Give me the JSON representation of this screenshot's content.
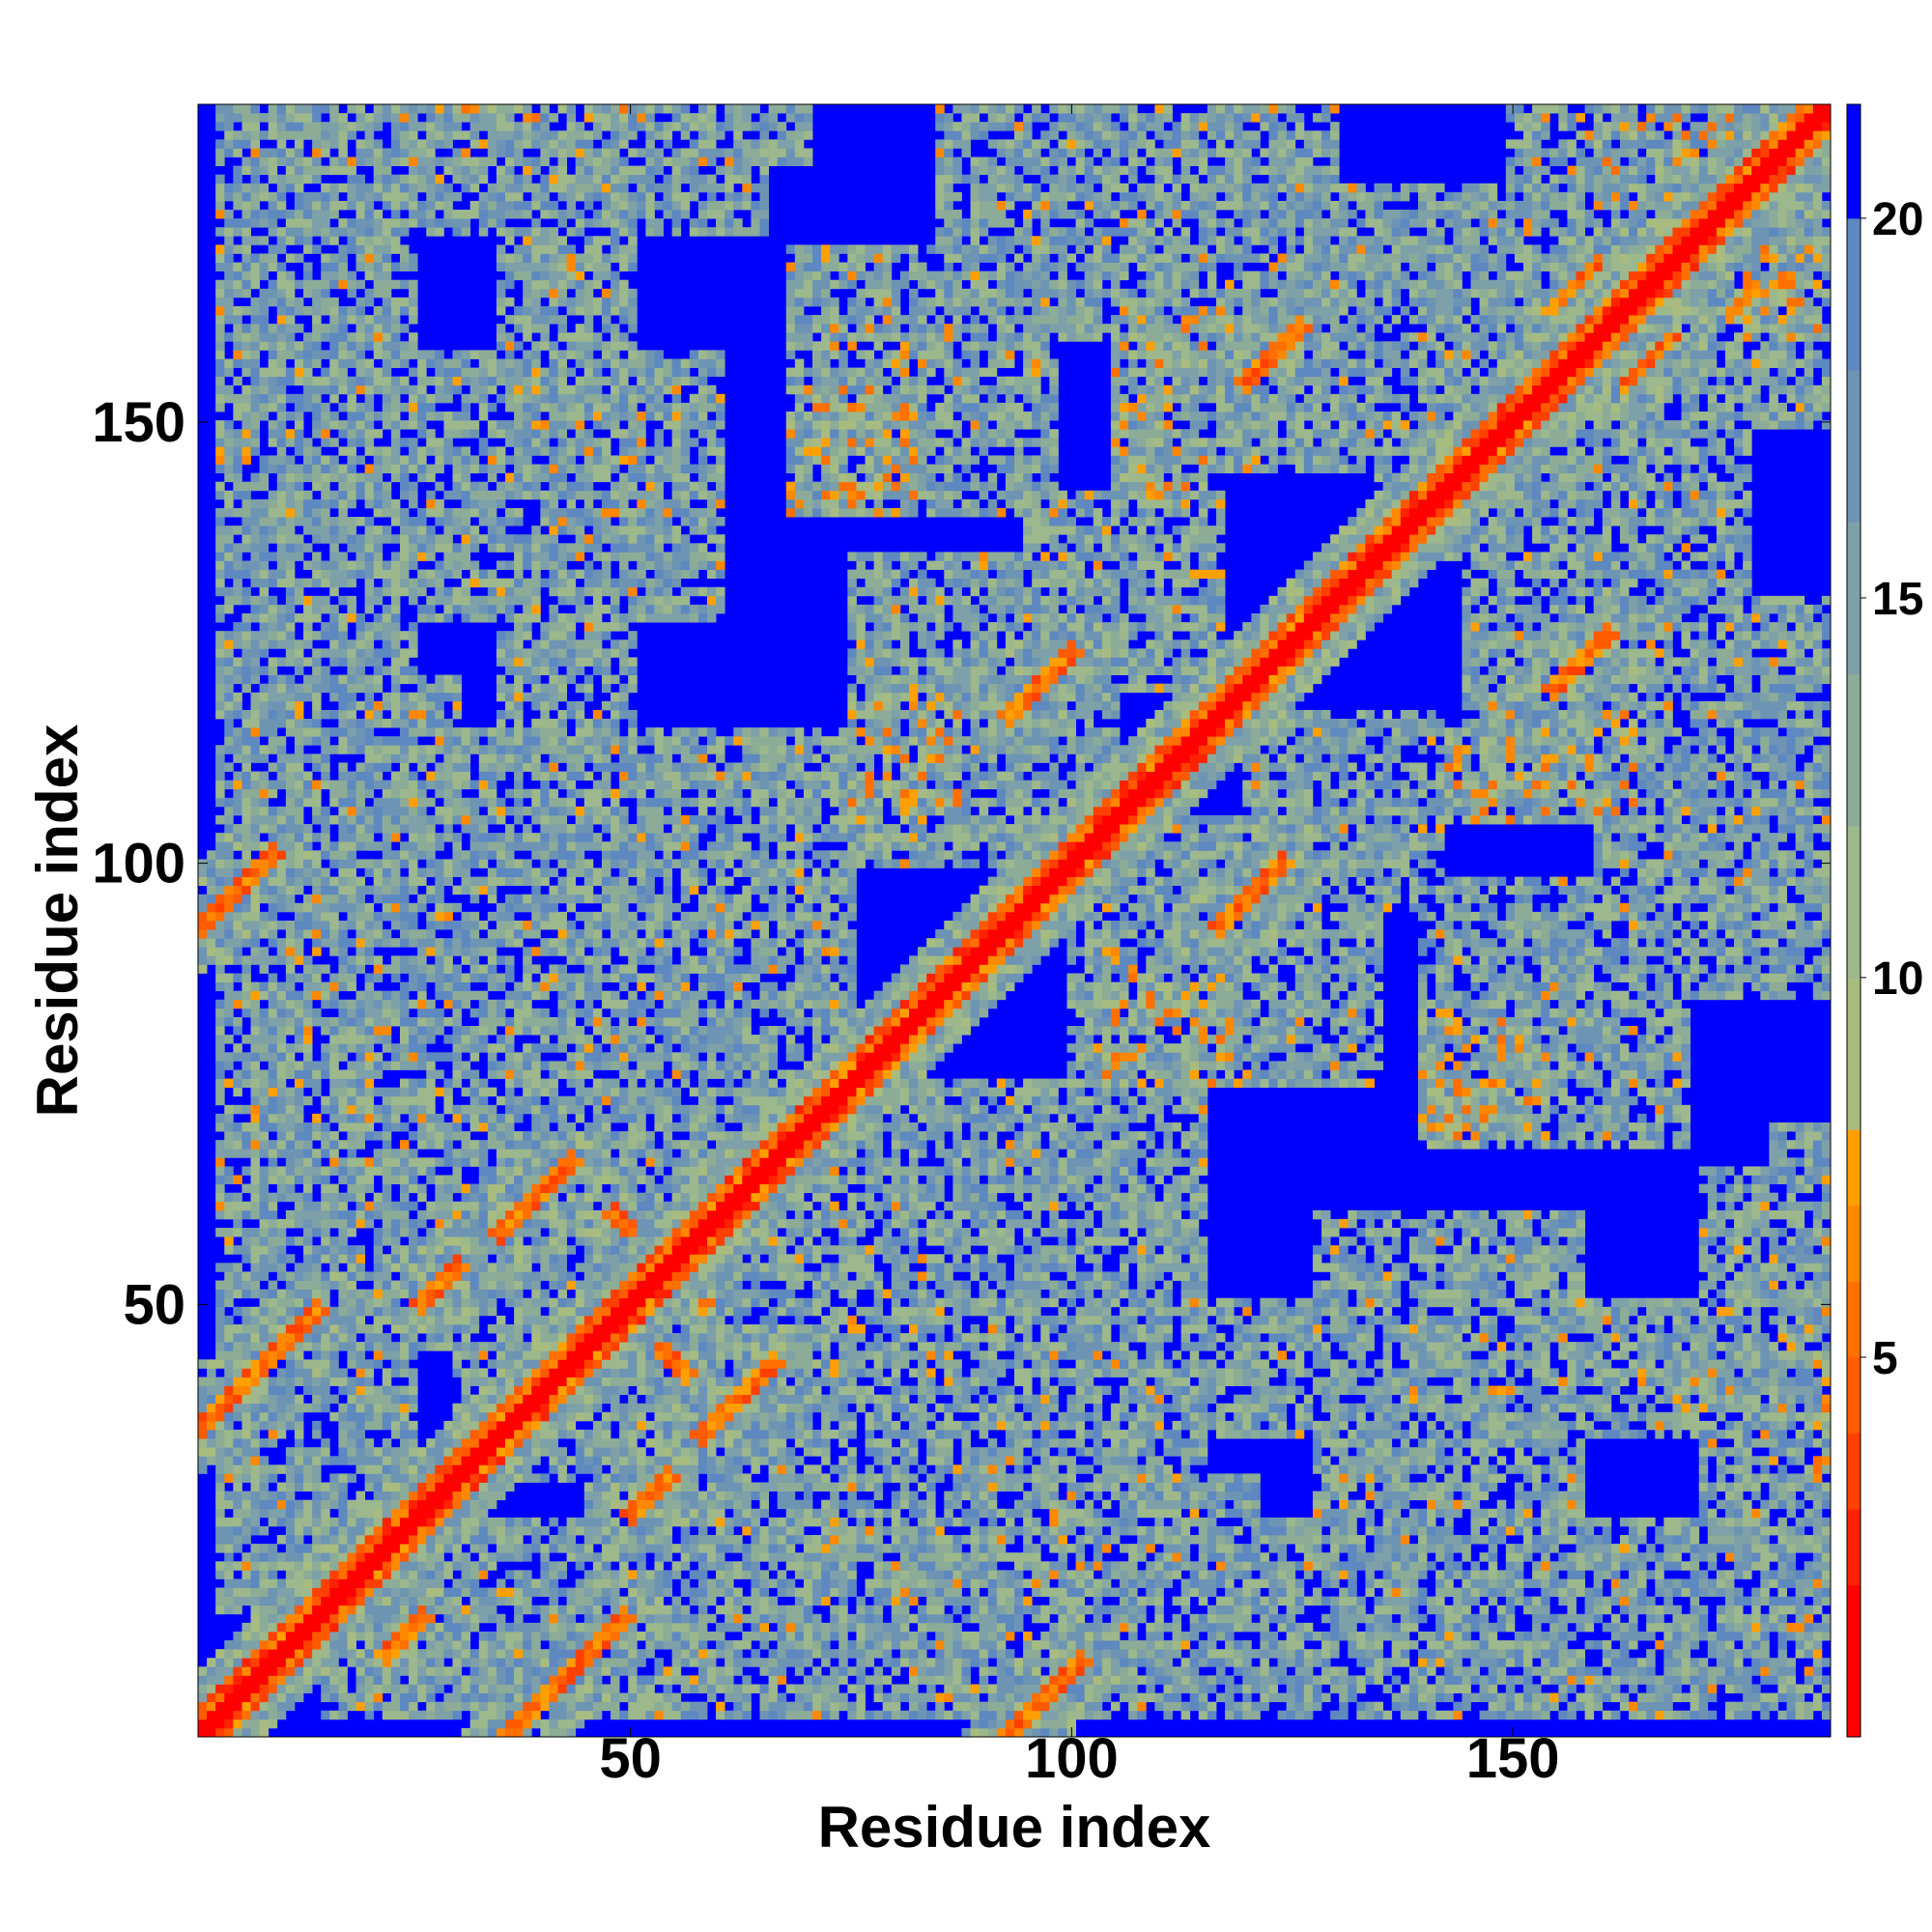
{
  "chart_data": {
    "type": "heatmap",
    "title": "",
    "xlabel": "Residue index",
    "ylabel": "Residue index",
    "xlim": [
      1,
      186
    ],
    "ylim": [
      1,
      186
    ],
    "x_ticks": [
      50,
      100,
      150
    ],
    "y_ticks": [
      50,
      100,
      150
    ],
    "n_residues": 186,
    "colorbar": {
      "range": [
        0,
        21.5
      ],
      "ticks": [
        5,
        10,
        15,
        20
      ],
      "bands": [
        {
          "from": 0,
          "to": 2,
          "color": "#ff0000"
        },
        {
          "from": 2,
          "to": 3,
          "color": "#ff2200"
        },
        {
          "from": 3,
          "to": 4,
          "color": "#ff4000"
        },
        {
          "from": 4,
          "to": 5,
          "color": "#ff5a00"
        },
        {
          "from": 5,
          "to": 6,
          "color": "#ff7000"
        },
        {
          "from": 6,
          "to": 7,
          "color": "#ff8800"
        },
        {
          "from": 7,
          "to": 8,
          "color": "#ffa000"
        },
        {
          "from": 8,
          "to": 10,
          "color": "#a8bc80"
        },
        {
          "from": 10,
          "to": 12,
          "color": "#9cb88c"
        },
        {
          "from": 12,
          "to": 14,
          "color": "#8cac98"
        },
        {
          "from": 14,
          "to": 16,
          "color": "#7ea0a8"
        },
        {
          "from": 16,
          "to": 18,
          "color": "#6e94b4"
        },
        {
          "from": 18,
          "to": 20,
          "color": "#5e88c0"
        },
        {
          "from": 20,
          "to": 21.5,
          "color": "#0000ff"
        }
      ]
    },
    "diagonal_band": {
      "contact_width": 3,
      "near_width": 7
    },
    "contact_segments": [
      {
        "x1": 1,
        "y1": 36,
        "x2": 14,
        "y2": 49
      },
      {
        "x1": 1,
        "y1": 93,
        "x2": 9,
        "y2": 101
      },
      {
        "x1": 36,
        "y1": 1,
        "x2": 49,
        "y2": 14
      },
      {
        "x1": 93,
        "y1": 1,
        "x2": 101,
        "y2": 9
      },
      {
        "x1": 35,
        "y1": 58,
        "x2": 43,
        "y2": 66
      },
      {
        "x1": 58,
        "y1": 35,
        "x2": 66,
        "y2": 43
      },
      {
        "x1": 48,
        "y1": 60,
        "x2": 58,
        "y2": 50
      },
      {
        "x1": 52,
        "y1": 46,
        "x2": 62,
        "y2": 36
      },
      {
        "x1": 26,
        "y1": 50,
        "x2": 30,
        "y2": 54
      },
      {
        "x1": 50,
        "y1": 26,
        "x2": 54,
        "y2": 30
      },
      {
        "x1": 93,
        "y1": 117,
        "x2": 100,
        "y2": 124
      },
      {
        "x1": 117,
        "y1": 93,
        "x2": 124,
        "y2": 100
      },
      {
        "x1": 120,
        "y1": 155,
        "x2": 126,
        "y2": 161
      },
      {
        "x1": 155,
        "y1": 120,
        "x2": 161,
        "y2": 126
      },
      {
        "x1": 155,
        "y1": 163,
        "x2": 160,
        "y2": 168
      },
      {
        "x1": 163,
        "y1": 155,
        "x2": 168,
        "y2": 160
      },
      {
        "x1": 15,
        "y1": 20,
        "x2": 19,
        "y2": 16
      },
      {
        "x1": 22,
        "y1": 10,
        "x2": 26,
        "y2": 14
      }
    ],
    "contact_clusters": [
      {
        "x": 68,
        "y": 140,
        "w": 14,
        "h": 14
      },
      {
        "x": 140,
        "y": 68,
        "w": 14,
        "h": 14
      },
      {
        "x": 103,
        "y": 75,
        "w": 16,
        "h": 12
      },
      {
        "x": 75,
        "y": 103,
        "w": 12,
        "h": 16
      },
      {
        "x": 150,
        "y": 105,
        "w": 14,
        "h": 16
      },
      {
        "x": 105,
        "y": 150,
        "w": 16,
        "h": 14
      },
      {
        "x": 105,
        "y": 143,
        "w": 10,
        "h": 12
      },
      {
        "x": 143,
        "y": 105,
        "w": 12,
        "h": 10
      },
      {
        "x": 30,
        "y": 185,
        "w": 22,
        "h": 8
      },
      {
        "x": 185,
        "y": 30,
        "w": 8,
        "h": 22
      },
      {
        "x": 160,
        "y": 175,
        "w": 20,
        "h": 10
      },
      {
        "x": 175,
        "y": 160,
        "w": 10,
        "h": 20
      }
    ],
    "near_regions": [
      {
        "x": 5,
        "y": 60,
        "w": 70,
        "h": 55
      },
      {
        "x": 60,
        "y": 5,
        "w": 55,
        "h": 70
      },
      {
        "x": 15,
        "y": 45,
        "w": 60,
        "h": 35
      },
      {
        "x": 45,
        "y": 15,
        "w": 35,
        "h": 60
      },
      {
        "x": 5,
        "y": 128,
        "w": 55,
        "h": 30
      },
      {
        "x": 128,
        "y": 5,
        "w": 30,
        "h": 55
      },
      {
        "x": 10,
        "y": 172,
        "w": 55,
        "h": 28
      },
      {
        "x": 172,
        "y": 10,
        "w": 28,
        "h": 55
      },
      {
        "x": 3,
        "y": 15,
        "w": 22,
        "h": 190
      },
      {
        "x": 15,
        "y": 3,
        "w": 190,
        "h": 22
      },
      {
        "x": 35,
        "y": 105,
        "w": 15,
        "h": 80
      },
      {
        "x": 105,
        "y": 35,
        "w": 80,
        "h": 15
      },
      {
        "x": 108,
        "y": 160,
        "w": 22,
        "h": 50
      },
      {
        "x": 160,
        "y": 108,
        "w": 50,
        "h": 22
      },
      {
        "x": 85,
        "y": 160,
        "w": 40,
        "h": 45
      },
      {
        "x": 160,
        "y": 85,
        "w": 45,
        "h": 40
      },
      {
        "x": 68,
        "y": 140,
        "w": 30,
        "h": 30
      },
      {
        "x": 140,
        "y": 68,
        "w": 30,
        "h": 30
      },
      {
        "x": 100,
        "y": 75,
        "w": 35,
        "h": 30
      },
      {
        "x": 75,
        "y": 100,
        "w": 30,
        "h": 35
      },
      {
        "x": 95,
        "y": 120,
        "w": 22,
        "h": 22
      },
      {
        "x": 120,
        "y": 95,
        "w": 22,
        "h": 22
      },
      {
        "x": 145,
        "y": 105,
        "w": 32,
        "h": 50
      },
      {
        "x": 105,
        "y": 145,
        "w": 50,
        "h": 32
      },
      {
        "x": 150,
        "y": 160,
        "w": 40,
        "h": 40
      },
      {
        "x": 160,
        "y": 150,
        "w": 40,
        "h": 40
      },
      {
        "x": 65,
        "y": 38,
        "w": 50,
        "h": 20
      },
      {
        "x": 38,
        "y": 65,
        "w": 20,
        "h": 50
      },
      {
        "x": 30,
        "y": 30,
        "w": 30,
        "h": 30
      },
      {
        "x": 96,
        "y": 5,
        "w": 25,
        "h": 25
      },
      {
        "x": 5,
        "y": 96,
        "w": 25,
        "h": 25
      },
      {
        "x": 180,
        "y": 20,
        "w": 16,
        "h": 50
      },
      {
        "x": 20,
        "y": 180,
        "w": 50,
        "h": 16
      },
      {
        "x": 135,
        "y": 140,
        "w": 20,
        "h": 20
      },
      {
        "x": 140,
        "y": 135,
        "w": 20,
        "h": 20
      }
    ]
  }
}
